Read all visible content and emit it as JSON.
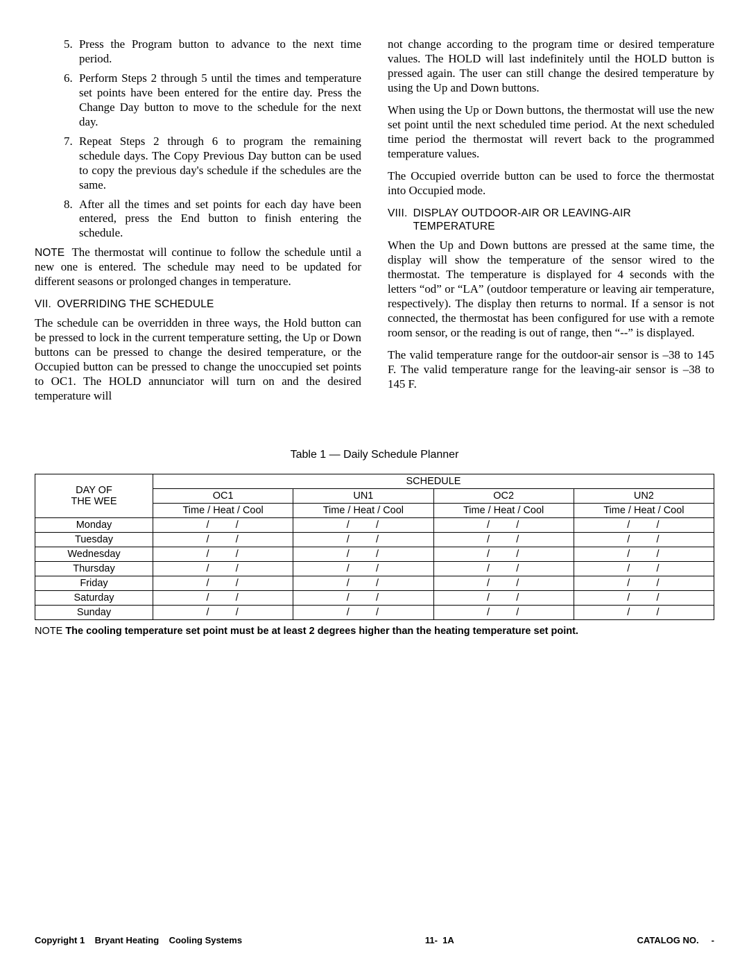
{
  "list": {
    "i5": {
      "num": "5.",
      "txt": "Press the Program button to advance to the next time period."
    },
    "i6": {
      "num": "6.",
      "txt": "Perform Steps 2 through 5 until the times and temperature set points have been entered for the entire day. Press the Change Day button to move to the schedule for the next day."
    },
    "i7": {
      "num": "7.",
      "txt": "Repeat Steps 2 through 6 to program the remaining schedule days. The Copy Previous Day button can be used to copy the previous day's schedule if the schedules are the same."
    },
    "i8": {
      "num": "8.",
      "txt": "After all the times and set points for each day have been entered, press the End button to finish entering the schedule."
    }
  },
  "colL": {
    "note_lbl": "NOTE",
    "note_txt": " The thermostat will continue to follow the schedule until a new one is entered. The schedule may need to be updated for different seasons or prolonged changes in temperature.",
    "h7_roman": "VII.",
    "h7_txt": "OVERRIDING THE SCHEDULE",
    "p1": "The schedule can be overridden in three ways, the Hold button can be pressed to lock in the current temperature setting, the Up or Down buttons can be pressed to change the desired temperature, or the Occupied button can be pressed to change the unoccupied set points to OC1. The HOLD annunciator will turn on and the desired temperature will"
  },
  "colR": {
    "p1": "not change according to the program time or desired temperature values. The HOLD will last indefinitely until the HOLD button is pressed again. The user can still change the desired temperature by using the Up and Down buttons.",
    "p2": "When using the Up or Down buttons, the thermostat will use the new set point until the next scheduled time period. At the next scheduled time period the thermostat will revert back to the programmed temperature values.",
    "p3": "The Occupied override button can be used to force the thermostat into Occupied mode.",
    "h8_roman": "VIII.",
    "h8_txt1": "DISPLAY OUTDOOR-AIR OR LEAVING-AIR",
    "h8_txt2": "TEMPERATURE",
    "p4": "When the Up and Down buttons are pressed at the same time, the display will show the temperature of the sensor wired to the thermostat. The temperature is displayed for 4 seconds with the letters “od” or “LA” (outdoor temperature or leaving air temperature, respectively). The display then returns to normal. If a sensor is not connected, the thermostat has been configured for use with a remote room sensor, or the reading is out of range, then “--” is displayed.",
    "p5": "The valid temperature range for the outdoor-air sensor is –38 to 145 F. The valid temperature range for the leaving-air sensor is –38 to 145 F."
  },
  "table": {
    "title": "Table 1 — Daily Schedule Planner",
    "day_hdr_l1": "DAY OF",
    "day_hdr_l2": "THE WEE",
    "sched_hdr": "SCHEDULE",
    "periods": {
      "p0": "OC1",
      "p1": "UN1",
      "p2": "OC2",
      "p3": "UN2"
    },
    "sub": "Time / Heat / Cool",
    "days": {
      "d0": "Monday",
      "d1": "Tuesday",
      "d2": "Wednesday",
      "d3": "Thursday",
      "d4": "Friday",
      "d5": "Saturday",
      "d6": "Sunday"
    },
    "cell": "/      /"
  },
  "bottom_note": {
    "lbl": "NOTE",
    "txt": "The cooling temperature set point must be at least 2 degrees higher than the heating temperature set point."
  },
  "footer": {
    "left": "Copyright 1    Bryant Heating    Cooling Systems",
    "center": "11-  1A",
    "right": "CATALOG NO.     -"
  }
}
